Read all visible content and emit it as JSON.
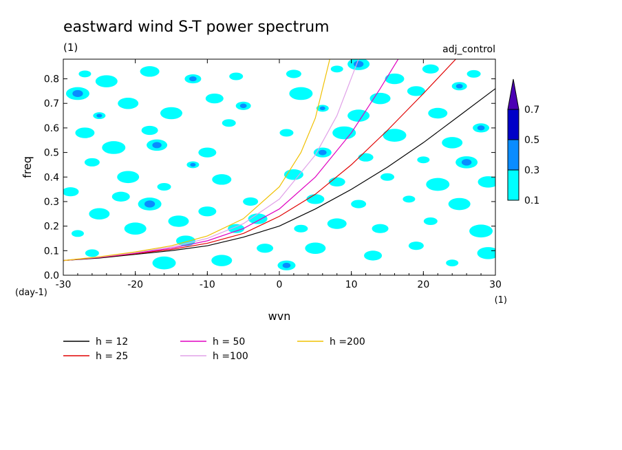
{
  "chart_data": {
    "type": "heatmap",
    "title": "eastward wind S-T power spectrum",
    "subtitle": "(1)",
    "annotation": "adj_control",
    "xlabel": "wvn",
    "x_unit": "(1)",
    "ylabel": "freq",
    "y_unit": "(day-1)",
    "xlim": [
      -30,
      30
    ],
    "ylim": [
      0.0,
      0.88
    ],
    "xticks": [
      -30,
      -20,
      -10,
      0,
      10,
      20,
      30
    ],
    "xtick_labels": [
      "-30",
      "-20",
      "-10",
      "0",
      "10",
      "20",
      "30"
    ],
    "yticks": [
      0.0,
      0.1,
      0.2,
      0.3,
      0.4,
      0.5,
      0.6,
      0.7,
      0.8
    ],
    "ytick_labels": [
      "0.0",
      "0.1",
      "0.2",
      "0.3",
      "0.4",
      "0.5",
      "0.6",
      "0.7",
      "0.8"
    ],
    "colorbar": {
      "levels": [
        0.1,
        0.3,
        0.5,
        0.7
      ],
      "labels": [
        "0.1",
        "0.3",
        "0.5",
        "0.7"
      ],
      "colors": [
        "#00ffff",
        "#0a8cff",
        "#0000c8",
        "#4b00b4"
      ],
      "extend": "max"
    },
    "patches": [
      {
        "x": -27,
        "y": 0.82,
        "lvl": 0
      },
      {
        "x": -24,
        "y": 0.79,
        "lvl": 0
      },
      {
        "x": -18,
        "y": 0.83,
        "lvl": 0
      },
      {
        "x": -12,
        "y": 0.8,
        "lvl": 1
      },
      {
        "x": -6,
        "y": 0.81,
        "lvl": 0
      },
      {
        "x": -28,
        "y": 0.74,
        "lvl": 1
      },
      {
        "x": -21,
        "y": 0.7,
        "lvl": 0
      },
      {
        "x": -9,
        "y": 0.72,
        "lvl": 0
      },
      {
        "x": -5,
        "y": 0.69,
        "lvl": 1
      },
      {
        "x": -25,
        "y": 0.65,
        "lvl": 1
      },
      {
        "x": -15,
        "y": 0.66,
        "lvl": 0
      },
      {
        "x": -27,
        "y": 0.58,
        "lvl": 0
      },
      {
        "x": -18,
        "y": 0.59,
        "lvl": 0
      },
      {
        "x": -7,
        "y": 0.62,
        "lvl": 0
      },
      {
        "x": -23,
        "y": 0.52,
        "lvl": 0
      },
      {
        "x": -17,
        "y": 0.53,
        "lvl": 1
      },
      {
        "x": -10,
        "y": 0.5,
        "lvl": 0
      },
      {
        "x": -26,
        "y": 0.46,
        "lvl": 0
      },
      {
        "x": -12,
        "y": 0.45,
        "lvl": 1
      },
      {
        "x": -21,
        "y": 0.4,
        "lvl": 0
      },
      {
        "x": -8,
        "y": 0.39,
        "lvl": 0
      },
      {
        "x": -29,
        "y": 0.34,
        "lvl": 0
      },
      {
        "x": -16,
        "y": 0.36,
        "lvl": 0
      },
      {
        "x": -18,
        "y": 0.29,
        "lvl": 1
      },
      {
        "x": -25,
        "y": 0.25,
        "lvl": 0
      },
      {
        "x": -10,
        "y": 0.26,
        "lvl": 0
      },
      {
        "x": -4,
        "y": 0.3,
        "lvl": 0
      },
      {
        "x": -28,
        "y": 0.17,
        "lvl": 0
      },
      {
        "x": -20,
        "y": 0.19,
        "lvl": 0
      },
      {
        "x": -13,
        "y": 0.14,
        "lvl": 0
      },
      {
        "x": -6,
        "y": 0.19,
        "lvl": 0
      },
      {
        "x": -26,
        "y": 0.09,
        "lvl": 0
      },
      {
        "x": -16,
        "y": 0.05,
        "lvl": 0
      },
      {
        "x": -8,
        "y": 0.06,
        "lvl": 0
      },
      {
        "x": 1,
        "y": 0.04,
        "lvl": 1
      },
      {
        "x": 2,
        "y": 0.82,
        "lvl": 0
      },
      {
        "x": 8,
        "y": 0.84,
        "lvl": 0
      },
      {
        "x": 11,
        "y": 0.86,
        "lvl": 1
      },
      {
        "x": 16,
        "y": 0.8,
        "lvl": 0
      },
      {
        "x": 21,
        "y": 0.84,
        "lvl": 0
      },
      {
        "x": 27,
        "y": 0.82,
        "lvl": 0
      },
      {
        "x": 3,
        "y": 0.74,
        "lvl": 0
      },
      {
        "x": 14,
        "y": 0.72,
        "lvl": 0
      },
      {
        "x": 19,
        "y": 0.75,
        "lvl": 0
      },
      {
        "x": 25,
        "y": 0.77,
        "lvl": 1
      },
      {
        "x": 6,
        "y": 0.68,
        "lvl": 1
      },
      {
        "x": 11,
        "y": 0.65,
        "lvl": 0
      },
      {
        "x": 22,
        "y": 0.66,
        "lvl": 0
      },
      {
        "x": 28,
        "y": 0.6,
        "lvl": 1
      },
      {
        "x": 1,
        "y": 0.58,
        "lvl": 0
      },
      {
        "x": 16,
        "y": 0.57,
        "lvl": 0
      },
      {
        "x": 24,
        "y": 0.54,
        "lvl": 0
      },
      {
        "x": 6,
        "y": 0.5,
        "lvl": 1
      },
      {
        "x": 12,
        "y": 0.48,
        "lvl": 0
      },
      {
        "x": 20,
        "y": 0.47,
        "lvl": 0
      },
      {
        "x": 26,
        "y": 0.46,
        "lvl": 1
      },
      {
        "x": 2,
        "y": 0.41,
        "lvl": 0
      },
      {
        "x": 8,
        "y": 0.38,
        "lvl": 0
      },
      {
        "x": 15,
        "y": 0.4,
        "lvl": 0
      },
      {
        "x": 22,
        "y": 0.37,
        "lvl": 0
      },
      {
        "x": 29,
        "y": 0.38,
        "lvl": 0
      },
      {
        "x": 5,
        "y": 0.31,
        "lvl": 0
      },
      {
        "x": 11,
        "y": 0.29,
        "lvl": 0
      },
      {
        "x": 18,
        "y": 0.31,
        "lvl": 0
      },
      {
        "x": 25,
        "y": 0.29,
        "lvl": 0
      },
      {
        "x": 8,
        "y": 0.21,
        "lvl": 0
      },
      {
        "x": 14,
        "y": 0.19,
        "lvl": 0
      },
      {
        "x": 21,
        "y": 0.22,
        "lvl": 0
      },
      {
        "x": 28,
        "y": 0.18,
        "lvl": 0
      },
      {
        "x": 5,
        "y": 0.11,
        "lvl": 0
      },
      {
        "x": 13,
        "y": 0.08,
        "lvl": 0
      },
      {
        "x": 19,
        "y": 0.12,
        "lvl": 0
      },
      {
        "x": 24,
        "y": 0.05,
        "lvl": 0
      },
      {
        "x": 29,
        "y": 0.09,
        "lvl": 0
      },
      {
        "x": -3,
        "y": 0.23,
        "lvl": 0
      },
      {
        "x": -2,
        "y": 0.11,
        "lvl": 0
      },
      {
        "x": 3,
        "y": 0.19,
        "lvl": 0
      },
      {
        "x": 9,
        "y": 0.58,
        "lvl": 0
      },
      {
        "x": -14,
        "y": 0.22,
        "lvl": 0
      },
      {
        "x": -22,
        "y": 0.32,
        "lvl": 0
      }
    ],
    "series": [
      {
        "name": "h = 12",
        "color": "#000000",
        "x": [
          -30,
          -25,
          -20,
          -15,
          -10,
          -5,
          0,
          5,
          10,
          15,
          20,
          25,
          30
        ],
        "y": [
          0.06,
          0.07,
          0.085,
          0.1,
          0.12,
          0.155,
          0.2,
          0.27,
          0.35,
          0.44,
          0.54,
          0.65,
          0.76
        ]
      },
      {
        "name": "h = 25",
        "color": "#e00000",
        "x": [
          -30,
          -25,
          -20,
          -15,
          -10,
          -5,
          0,
          5,
          10,
          15,
          20,
          24.5
        ],
        "y": [
          0.06,
          0.072,
          0.088,
          0.105,
          0.13,
          0.17,
          0.24,
          0.33,
          0.45,
          0.59,
          0.74,
          0.88
        ]
      },
      {
        "name": "h = 50",
        "color": "#e000c0",
        "x": [
          -30,
          -25,
          -20,
          -15,
          -10,
          -5,
          0,
          5,
          10,
          14,
          16.5
        ],
        "y": [
          0.06,
          0.073,
          0.09,
          0.11,
          0.14,
          0.19,
          0.27,
          0.4,
          0.58,
          0.76,
          0.88
        ]
      },
      {
        "name": "h =100",
        "color": "#e0a0e8",
        "x": [
          -30,
          -25,
          -20,
          -15,
          -10,
          -5,
          0,
          5,
          8,
          11
        ],
        "y": [
          0.06,
          0.074,
          0.092,
          0.115,
          0.15,
          0.21,
          0.31,
          0.49,
          0.65,
          0.88
        ]
      },
      {
        "name": "h =200",
        "color": "#f0c000",
        "x": [
          -30,
          -25,
          -20,
          -15,
          -10,
          -5,
          0,
          3,
          5,
          7
        ],
        "y": [
          0.06,
          0.075,
          0.095,
          0.12,
          0.16,
          0.23,
          0.36,
          0.5,
          0.64,
          0.88
        ]
      }
    ]
  }
}
